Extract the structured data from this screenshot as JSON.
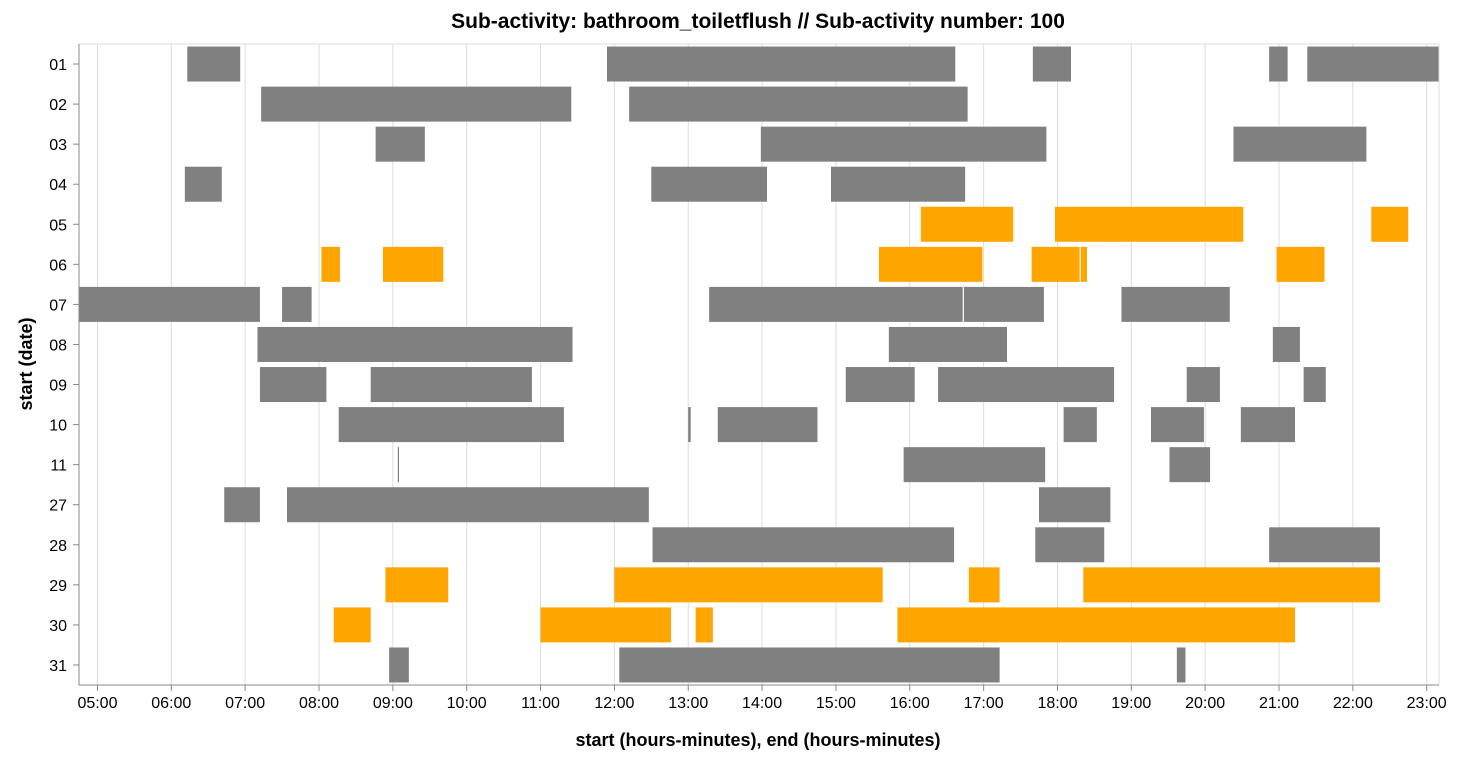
{
  "chart_data": {
    "type": "gantt",
    "title": "Sub-activity: bathroom_toiletflush // Sub-activity number: 100",
    "xlabel": "start (hours-minutes), end (hours-minutes)",
    "ylabel": "start (date)",
    "xlim": [
      "04:45",
      "23:10"
    ],
    "x_ticks": [
      "05:00",
      "06:00",
      "07:00",
      "08:00",
      "09:00",
      "10:00",
      "11:00",
      "12:00",
      "13:00",
      "14:00",
      "15:00",
      "16:00",
      "17:00",
      "18:00",
      "19:00",
      "20:00",
      "21:00",
      "22:00",
      "23:00"
    ],
    "categories": [
      "01",
      "02",
      "03",
      "04",
      "05",
      "06",
      "07",
      "08",
      "09",
      "10",
      "11",
      "27",
      "28",
      "29",
      "30",
      "31"
    ],
    "grid": "vertical",
    "colors": {
      "default": "#808080",
      "highlight": "#FFA500",
      "grid": "#dddddd",
      "axis": "#888888"
    },
    "highlighted_dates": [
      "05",
      "06",
      "29",
      "30"
    ],
    "intervals": {
      "01": [
        [
          "06:13",
          "06:56"
        ],
        [
          "11:54",
          "16:37"
        ],
        [
          "17:40",
          "18:11"
        ],
        [
          "20:52",
          "21:07"
        ],
        [
          "21:23",
          "23:10"
        ]
      ],
      "02": [
        [
          "07:13",
          "11:25"
        ],
        [
          "12:12",
          "16:47"
        ]
      ],
      "03": [
        [
          "08:46",
          "09:26"
        ],
        [
          "13:59",
          "17:51"
        ],
        [
          "20:23",
          "22:11"
        ]
      ],
      "04": [
        [
          "06:11",
          "06:41"
        ],
        [
          "12:30",
          "14:04"
        ],
        [
          "14:56",
          "16:45"
        ]
      ],
      "05": [
        [
          "16:09",
          "17:24"
        ],
        [
          "17:58",
          "20:31"
        ],
        [
          "22:15",
          "22:45"
        ]
      ],
      "06": [
        [
          "08:02",
          "08:17"
        ],
        [
          "08:52",
          "09:41"
        ],
        [
          "15:35",
          "16:59"
        ],
        [
          "17:39",
          "18:18"
        ],
        [
          "18:19",
          "18:24"
        ],
        [
          "20:58",
          "21:37"
        ]
      ],
      "07": [
        [
          "04:45",
          "07:12"
        ],
        [
          "07:30",
          "07:54"
        ],
        [
          "13:17",
          "16:43"
        ],
        [
          "16:44",
          "17:49"
        ],
        [
          "18:52",
          "20:20"
        ]
      ],
      "08": [
        [
          "07:10",
          "11:26"
        ],
        [
          "15:43",
          "17:19"
        ],
        [
          "20:55",
          "21:17"
        ]
      ],
      "09": [
        [
          "07:12",
          "08:06"
        ],
        [
          "08:42",
          "10:53"
        ],
        [
          "15:08",
          "16:04"
        ],
        [
          "16:23",
          "18:46"
        ],
        [
          "19:45",
          "20:12"
        ],
        [
          "21:20",
          "21:38"
        ]
      ],
      "10": [
        [
          "08:16",
          "11:19"
        ],
        [
          "13:00",
          "13:02"
        ],
        [
          "13:24",
          "14:45"
        ],
        [
          "18:05",
          "18:32"
        ],
        [
          "19:16",
          "19:59"
        ],
        [
          "20:29",
          "21:13"
        ]
      ],
      "11": [
        [
          "09:04",
          "09:05"
        ],
        [
          "15:55",
          "17:50"
        ],
        [
          "19:31",
          "20:04"
        ]
      ],
      "27": [
        [
          "06:43",
          "07:12"
        ],
        [
          "07:34",
          "12:28"
        ],
        [
          "17:45",
          "18:43"
        ]
      ],
      "28": [
        [
          "12:31",
          "16:36"
        ],
        [
          "17:42",
          "18:38"
        ],
        [
          "20:52",
          "22:22"
        ]
      ],
      "29": [
        [
          "08:54",
          "09:45"
        ],
        [
          "12:00",
          "15:38"
        ],
        [
          "16:48",
          "17:13"
        ],
        [
          "18:21",
          "22:22"
        ]
      ],
      "30": [
        [
          "08:12",
          "08:42"
        ],
        [
          "11:00",
          "12:46"
        ],
        [
          "13:06",
          "13:20"
        ],
        [
          "15:50",
          "21:13"
        ]
      ],
      "31": [
        [
          "08:57",
          "09:13"
        ],
        [
          "12:04",
          "17:13"
        ],
        [
          "19:37",
          "19:44"
        ]
      ]
    }
  }
}
